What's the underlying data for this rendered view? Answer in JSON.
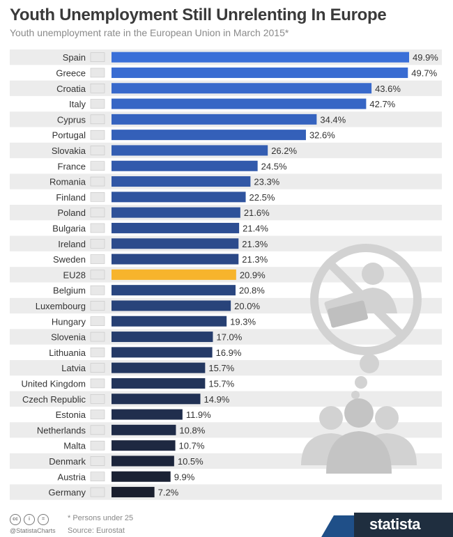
{
  "header": {
    "title": "Youth Unemployment Still Unrelenting In Europe",
    "subtitle": "Youth unemployment rate in the European Union in March 2015*"
  },
  "chart_data": {
    "type": "bar",
    "orientation": "horizontal",
    "title": "Youth Unemployment Still Unrelenting In Europe",
    "subtitle": "Youth unemployment rate in the European Union in March 2015*",
    "xlabel": "",
    "ylabel": "",
    "xlim": [
      0,
      50
    ],
    "grid": false,
    "categories": [
      "Spain",
      "Greece",
      "Croatia",
      "Italy",
      "Cyprus",
      "Portugal",
      "Slovakia",
      "France",
      "Romania",
      "Finland",
      "Poland",
      "Bulgaria",
      "Ireland",
      "Sweden",
      "EU28",
      "Belgium",
      "Luxembourg",
      "Hungary",
      "Slovenia",
      "Lithuania",
      "Latvia",
      "United Kingdom",
      "Czech Republic",
      "Estonia",
      "Netherlands",
      "Malta",
      "Denmark",
      "Austria",
      "Germany"
    ],
    "values": [
      49.9,
      49.7,
      43.6,
      42.7,
      34.4,
      32.6,
      26.2,
      24.5,
      23.3,
      22.5,
      21.6,
      21.4,
      21.3,
      21.3,
      20.9,
      20.8,
      20.0,
      19.3,
      17.0,
      16.9,
      15.7,
      15.7,
      14.9,
      11.9,
      10.8,
      10.7,
      10.5,
      9.9,
      7.2
    ],
    "value_labels": [
      "49.9%",
      "49.7%",
      "43.6%",
      "42.7%",
      "34.4%",
      "32.6%",
      "26.2%",
      "24.5%",
      "23.3%",
      "22.5%",
      "21.6%",
      "21.4%",
      "21.3%",
      "21.3%",
      "20.9%",
      "20.8%",
      "20.0%",
      "19.3%",
      "17.0%",
      "16.9%",
      "15.7%",
      "15.7%",
      "14.9%",
      "11.9%",
      "10.8%",
      "10.7%",
      "10.5%",
      "9.9%",
      "7.2%"
    ],
    "highlight_category": "EU28",
    "colors": {
      "bar_start": "#3a6fd8",
      "bar_end": "#1a1f2e",
      "highlight": "#f7b42c",
      "row_stripe": "#ececec"
    }
  },
  "footer": {
    "note": "* Persons under 25",
    "source": "Source: Eurostat",
    "handle": "@StatistaCharts",
    "license_icons": [
      "cc-icon",
      "by-icon",
      "nd-icon"
    ],
    "brand": "statista"
  },
  "illustration": {
    "icon": "no-money-unemployed-people-icon"
  }
}
